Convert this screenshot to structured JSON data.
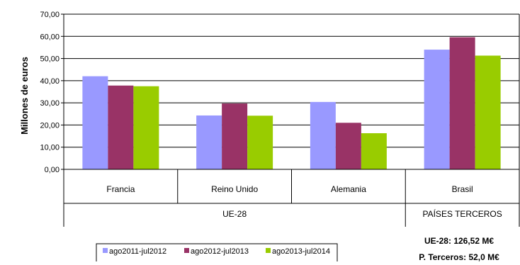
{
  "chart_data": {
    "type": "bar",
    "ylabel": "Millones de euros",
    "ylim": [
      0,
      70
    ],
    "yticks": [
      "0,00",
      "10,00",
      "20,00",
      "30,00",
      "40,00",
      "50,00",
      "60,00",
      "70,00"
    ],
    "grid": true,
    "categories": [
      "Francia",
      "Reino Unido",
      "Alemania",
      "Brasil"
    ],
    "groups": [
      {
        "label": "UE-28",
        "categories": [
          "Francia",
          "Reino Unido",
          "Alemania"
        ]
      },
      {
        "label": "PAÍSES TERCEROS",
        "categories": [
          "Brasil"
        ]
      }
    ],
    "series": [
      {
        "name": "ago2011-jul2012",
        "color": "#9999ff",
        "values": [
          42.0,
          24.3,
          30.4,
          54.0
        ]
      },
      {
        "name": "ago2012-jul2013",
        "color": "#993366",
        "values": [
          37.8,
          29.7,
          21.0,
          59.6
        ]
      },
      {
        "name": "ago2013-jul2014",
        "color": "#99cc00",
        "values": [
          37.5,
          24.2,
          16.3,
          51.3
        ]
      }
    ],
    "legend_position": "bottom-left",
    "annotations": [
      "UE-28: 126,52  M€",
      "P. Terceros: 52,0 M€"
    ]
  }
}
